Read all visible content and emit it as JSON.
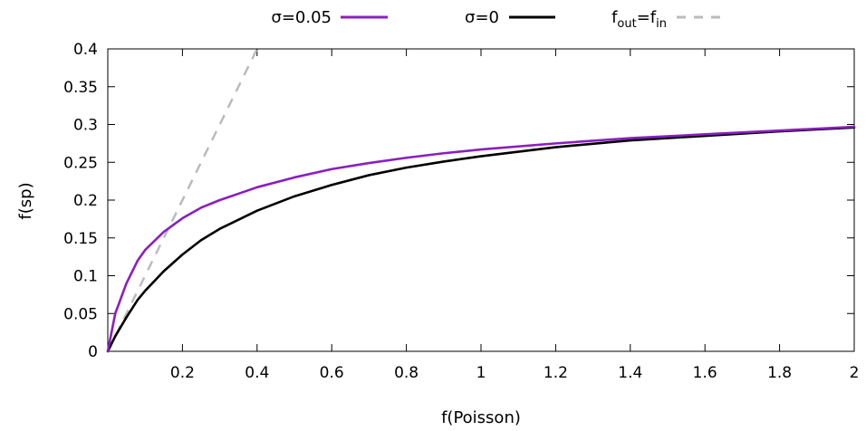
{
  "chart_data": {
    "type": "line",
    "xlabel": "f(Poisson)",
    "ylabel": "f(sp)",
    "xlim": [
      0,
      2
    ],
    "ylim": [
      0,
      0.4
    ],
    "xticks": [
      0.2,
      0.4,
      0.6,
      0.8,
      1,
      1.2,
      1.4,
      1.6,
      1.8,
      2
    ],
    "xtick_labels": [
      "0.2",
      "0.4",
      "0.6",
      "0.8",
      "1",
      "1.2",
      "1.4",
      "1.6",
      "1.8",
      "2"
    ],
    "yticks": [
      0,
      0.05,
      0.1,
      0.15,
      0.2,
      0.25,
      0.3,
      0.35,
      0.4
    ],
    "ytick_labels": [
      "0",
      "0.05",
      "0.1",
      "0.15",
      "0.2",
      "0.25",
      "0.3",
      "0.35",
      "0.4"
    ],
    "grid": false,
    "legend_position": "top-outside",
    "series": [
      {
        "name": "σ=0.05",
        "color": "#8a1fbf",
        "style": "solid",
        "x": [
          0,
          0.02,
          0.05,
          0.08,
          0.1,
          0.15,
          0.2,
          0.25,
          0.3,
          0.4,
          0.5,
          0.6,
          0.7,
          0.8,
          0.9,
          1.0,
          1.2,
          1.4,
          1.6,
          1.8,
          2.0
        ],
        "y": [
          0,
          0.05,
          0.09,
          0.12,
          0.134,
          0.158,
          0.176,
          0.19,
          0.2,
          0.217,
          0.23,
          0.241,
          0.249,
          0.256,
          0.262,
          0.267,
          0.275,
          0.282,
          0.287,
          0.292,
          0.297
        ]
      },
      {
        "name": "σ=0",
        "color": "#000000",
        "style": "solid",
        "x": [
          0,
          0.02,
          0.05,
          0.08,
          0.1,
          0.15,
          0.2,
          0.25,
          0.3,
          0.4,
          0.5,
          0.6,
          0.7,
          0.8,
          0.9,
          1.0,
          1.2,
          1.4,
          1.6,
          1.8,
          2.0
        ],
        "y": [
          0,
          0.02,
          0.045,
          0.068,
          0.08,
          0.106,
          0.128,
          0.147,
          0.162,
          0.186,
          0.205,
          0.22,
          0.233,
          0.243,
          0.251,
          0.258,
          0.27,
          0.279,
          0.285,
          0.291,
          0.296
        ]
      },
      {
        "name": "f_out=f_in",
        "name_parts": {
          "f1": "f",
          "sub1": "out",
          "eq": "=f",
          "sub2": "in"
        },
        "color": "#bbbbbb",
        "style": "dashed",
        "x": [
          0,
          0.4
        ],
        "y": [
          0,
          0.4
        ]
      }
    ]
  }
}
